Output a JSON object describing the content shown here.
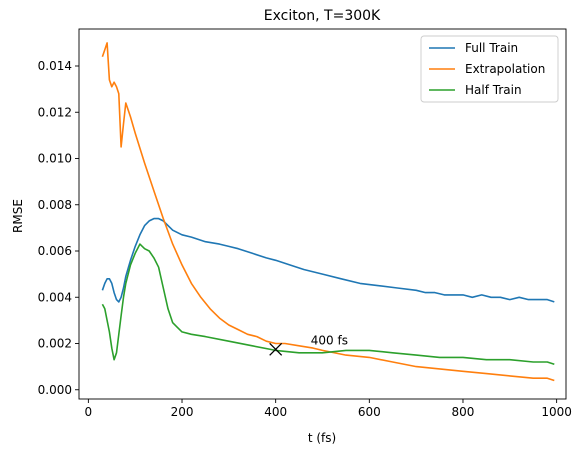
{
  "chart_data": {
    "type": "line",
    "title": "Exciton, T=300K",
    "xlabel": "t (fs)",
    "ylabel": "RMSE",
    "xlim": [
      -20,
      1020
    ],
    "ylim": [
      -0.0004,
      0.0156
    ],
    "x_ticks": [
      0,
      200,
      400,
      600,
      800,
      1000
    ],
    "x_tick_labels": [
      "0",
      "200",
      "400",
      "600",
      "800",
      "1000"
    ],
    "y_ticks": [
      0.0,
      0.002,
      0.004,
      0.006,
      0.008,
      0.01,
      0.012,
      0.014
    ],
    "y_tick_labels": [
      "0.000",
      "0.002",
      "0.004",
      "0.006",
      "0.008",
      "0.010",
      "0.012",
      "0.014"
    ],
    "grid": false,
    "legend_position": "top-right",
    "series": [
      {
        "name": "Full Train",
        "color": "#1f77b4",
        "x": [
          30,
          35,
          40,
          45,
          50,
          55,
          60,
          65,
          70,
          75,
          80,
          90,
          100,
          110,
          120,
          130,
          140,
          150,
          160,
          170,
          180,
          200,
          220,
          250,
          280,
          300,
          320,
          350,
          380,
          400,
          430,
          460,
          500,
          540,
          580,
          620,
          660,
          700,
          720,
          740,
          760,
          780,
          800,
          820,
          840,
          860,
          880,
          900,
          920,
          940,
          960,
          980,
          995
        ],
        "y": [
          0.0043,
          0.0046,
          0.0048,
          0.0048,
          0.0046,
          0.0042,
          0.0039,
          0.0038,
          0.004,
          0.0044,
          0.0049,
          0.0056,
          0.0062,
          0.0067,
          0.0071,
          0.0073,
          0.0074,
          0.0074,
          0.0073,
          0.0071,
          0.0069,
          0.0067,
          0.0066,
          0.0064,
          0.0063,
          0.0062,
          0.0061,
          0.0059,
          0.0057,
          0.0056,
          0.0054,
          0.0052,
          0.005,
          0.0048,
          0.0046,
          0.0045,
          0.0044,
          0.0043,
          0.0042,
          0.0042,
          0.0041,
          0.0041,
          0.0041,
          0.004,
          0.0041,
          0.004,
          0.004,
          0.0039,
          0.004,
          0.0039,
          0.0039,
          0.0039,
          0.0038
        ]
      },
      {
        "name": "Extrapolation",
        "color": "#ff7f0e",
        "x": [
          30,
          35,
          40,
          45,
          50,
          55,
          60,
          65,
          70,
          75,
          80,
          90,
          100,
          120,
          140,
          160,
          180,
          200,
          220,
          240,
          260,
          280,
          300,
          320,
          340,
          360,
          380,
          400,
          420,
          450,
          480,
          500,
          550,
          600,
          650,
          700,
          750,
          800,
          850,
          900,
          950,
          980,
          995
        ],
        "y": [
          0.0144,
          0.0147,
          0.015,
          0.0134,
          0.0131,
          0.0133,
          0.0131,
          0.0128,
          0.0105,
          0.0115,
          0.0124,
          0.0118,
          0.0111,
          0.0098,
          0.0086,
          0.0074,
          0.0063,
          0.0054,
          0.0046,
          0.004,
          0.0035,
          0.0031,
          0.0028,
          0.0026,
          0.0024,
          0.0023,
          0.0021,
          0.002,
          0.002,
          0.0019,
          0.0018,
          0.0017,
          0.0015,
          0.0014,
          0.0012,
          0.001,
          0.0009,
          0.0008,
          0.0007,
          0.0006,
          0.0005,
          0.0005,
          0.0004
        ]
      },
      {
        "name": "Half Train",
        "color": "#2ca02c",
        "x": [
          30,
          35,
          40,
          45,
          50,
          55,
          60,
          65,
          70,
          75,
          80,
          90,
          100,
          110,
          120,
          130,
          140,
          150,
          160,
          170,
          180,
          190,
          200,
          220,
          250,
          300,
          350,
          400,
          450,
          500,
          550,
          600,
          650,
          700,
          750,
          800,
          850,
          900,
          950,
          980,
          995
        ],
        "y": [
          0.0037,
          0.0035,
          0.003,
          0.0025,
          0.0018,
          0.0013,
          0.0016,
          0.0024,
          0.0032,
          0.004,
          0.0046,
          0.0054,
          0.0059,
          0.0063,
          0.0061,
          0.006,
          0.0057,
          0.0053,
          0.0044,
          0.0035,
          0.0029,
          0.0027,
          0.0025,
          0.0024,
          0.0023,
          0.0021,
          0.0019,
          0.0017,
          0.0016,
          0.0016,
          0.0017,
          0.0017,
          0.0016,
          0.0015,
          0.0014,
          0.0014,
          0.0013,
          0.0013,
          0.0012,
          0.0012,
          0.0011
        ]
      }
    ],
    "annotations": [
      {
        "type": "marker",
        "symbol": "x",
        "x": 400,
        "y": 0.00175,
        "color": "#000000"
      },
      {
        "type": "text",
        "text": "400 fs",
        "x": 475,
        "y": 0.00195
      }
    ]
  }
}
